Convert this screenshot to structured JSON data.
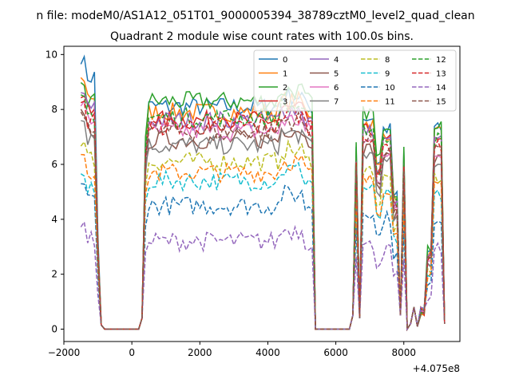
{
  "chart_data": {
    "type": "line",
    "suptitle": "n file: modeM0/AS1A12_051T01_9000005394_38789cztM0_level2_quad_clean",
    "title": "Quadrant 2 module wise count rates with 100.0s bins.",
    "xlabel": "",
    "ylabel": "",
    "offset_text": "+4.075e8",
    "xlim": [
      -2000,
      9650
    ],
    "ylim": [
      -0.45,
      10.3
    ],
    "xticks": [
      -2000,
      0,
      2000,
      4000,
      6000,
      8000
    ],
    "yticks": [
      0,
      2,
      4,
      6,
      8,
      10
    ],
    "grid": false,
    "legend": {
      "placement": "top-right",
      "columns": 4
    },
    "x_start": -1500,
    "x_step": 100,
    "series": [
      {
        "name": "0",
        "color": "#1f77b4",
        "dash": "solid",
        "plateau": 8.1,
        "start": 9.8
      },
      {
        "name": "1",
        "color": "#ff7f0e",
        "dash": "solid",
        "plateau": 7.9,
        "start": 9.1
      },
      {
        "name": "2",
        "color": "#2ca02c",
        "dash": "solid",
        "plateau": 8.3,
        "start": 8.9
      },
      {
        "name": "3",
        "color": "#d62728",
        "dash": "solid",
        "plateau": 7.6,
        "start": 8.5
      },
      {
        "name": "4",
        "color": "#9467bd",
        "dash": "solid",
        "plateau": 7.6,
        "start": 8.6
      },
      {
        "name": "5",
        "color": "#8c564b",
        "dash": "solid",
        "plateau": 6.9,
        "start": 7.9
      },
      {
        "name": "6",
        "color": "#e377c2",
        "dash": "solid",
        "plateau": 7.2,
        "start": 8.2
      },
      {
        "name": "7",
        "color": "#7f7f7f",
        "dash": "solid",
        "plateau": 6.7,
        "start": 7.6
      },
      {
        "name": "8",
        "color": "#bcbd22",
        "dash": "dashed",
        "plateau": 6.1,
        "start": 6.8
      },
      {
        "name": "9",
        "color": "#17becf",
        "dash": "dashed",
        "plateau": 5.4,
        "start": 5.6
      },
      {
        "name": "10",
        "color": "#1f77b4",
        "dash": "dashed",
        "plateau": 4.5,
        "start": 5.3
      },
      {
        "name": "11",
        "color": "#ff7f0e",
        "dash": "dashed",
        "plateau": 5.7,
        "start": 6.4
      },
      {
        "name": "12",
        "color": "#2ca02c",
        "dash": "dashed",
        "plateau": 7.7,
        "start": 8.4
      },
      {
        "name": "13",
        "color": "#d62728",
        "dash": "dashed",
        "plateau": 7.4,
        "start": 8.2
      },
      {
        "name": "14",
        "color": "#9467bd",
        "dash": "dashed",
        "plateau": 3.2,
        "start": 3.8
      },
      {
        "name": "15",
        "color": "#8c564b",
        "dash": "dashed",
        "plateau": 7.2,
        "start": 7.8
      }
    ]
  }
}
